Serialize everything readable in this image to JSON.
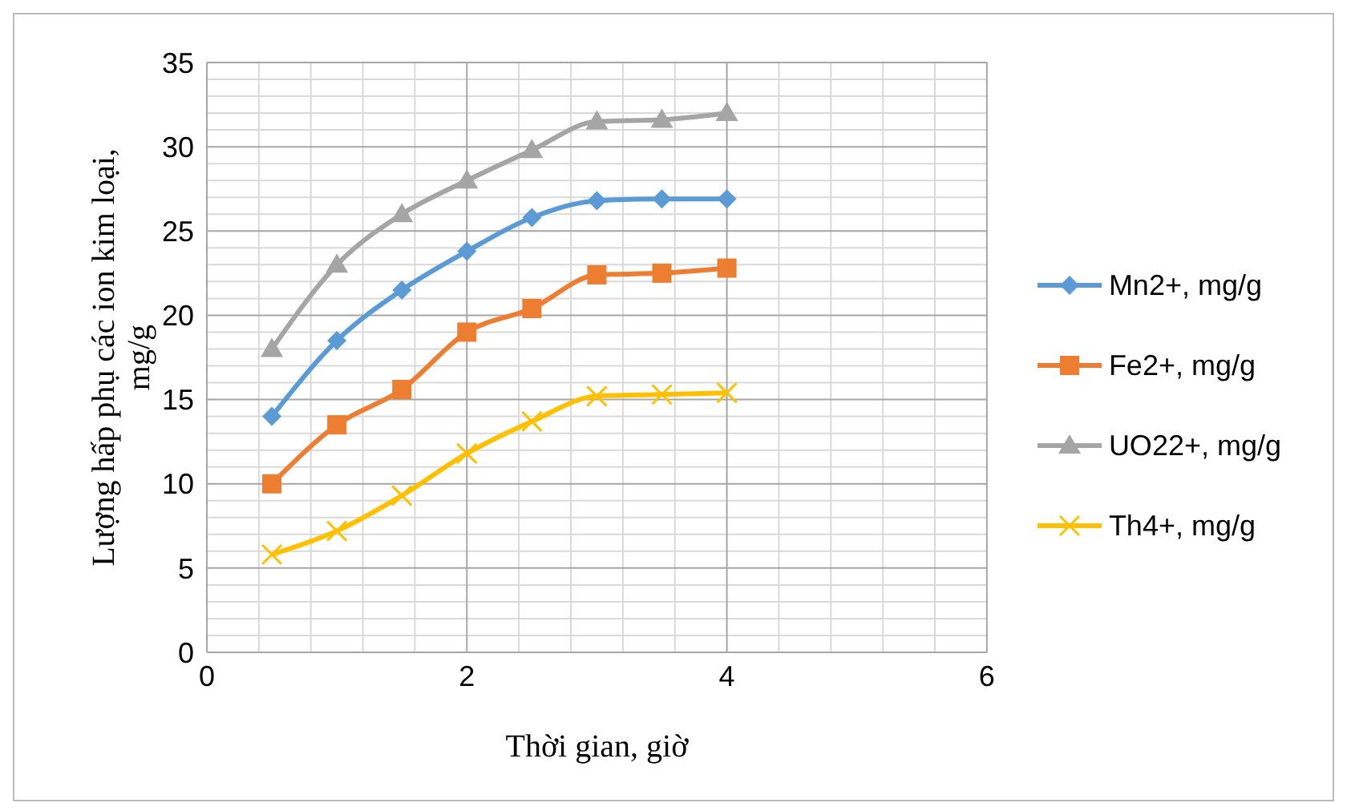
{
  "chart_data": {
    "type": "line",
    "xlabel": "Thời gian, giờ",
    "ylabel": "Lượng hấp phụ các ion kim loại, mg/g",
    "x": [
      0.5,
      1,
      1.5,
      2,
      2.5,
      3,
      3.5,
      4
    ],
    "xlim": [
      0,
      6
    ],
    "xticks": [
      0,
      2,
      4,
      6
    ],
    "ylim": [
      0,
      35
    ],
    "yticks": [
      0,
      5,
      10,
      15,
      20,
      25,
      30,
      35
    ],
    "grid": true,
    "legend": "right",
    "line_style": "solid",
    "series": [
      {
        "name": "Mn2+, mg/g",
        "color": "#5b9bd5",
        "marker": "diamond",
        "values": [
          14,
          18.5,
          21.5,
          23.8,
          25.8,
          26.8,
          26.9,
          26.9
        ]
      },
      {
        "name": "Fe2+, mg/g",
        "color": "#ed7d31",
        "marker": "square",
        "values": [
          10,
          13.5,
          15.6,
          19,
          20.4,
          22.4,
          22.5,
          22.8
        ]
      },
      {
        "name": "UO22+, mg/g",
        "color": "#a5a5a5",
        "marker": "triangle",
        "values": [
          18,
          23,
          26,
          28,
          29.8,
          31.5,
          31.6,
          32
        ]
      },
      {
        "name": "Th4+, mg/g",
        "color": "#ffc000",
        "marker": "cross",
        "values": [
          5.8,
          7.2,
          9.3,
          11.8,
          13.7,
          15.2,
          15.3,
          15.4
        ]
      }
    ]
  }
}
